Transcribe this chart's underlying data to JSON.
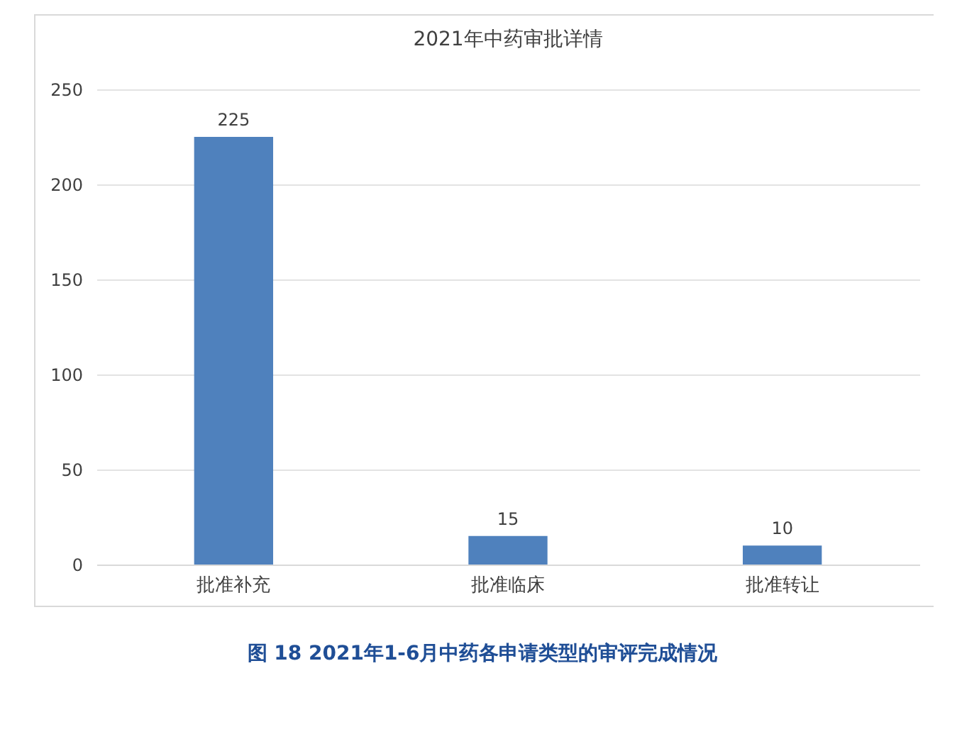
{
  "chart_data": {
    "type": "bar",
    "title": "2021年中药审批详情",
    "categories": [
      "批准补充",
      "批准临床",
      "批准转让"
    ],
    "values": [
      225,
      15,
      10
    ],
    "color": "#4f81bd",
    "ylim": [
      0,
      250
    ],
    "yticks": [
      0,
      50,
      100,
      150,
      200,
      250
    ],
    "grid": "y",
    "data_labels": true,
    "annotations": [
      "图 18 2021年1-6月中药各申请类型的审评完成情况"
    ]
  }
}
